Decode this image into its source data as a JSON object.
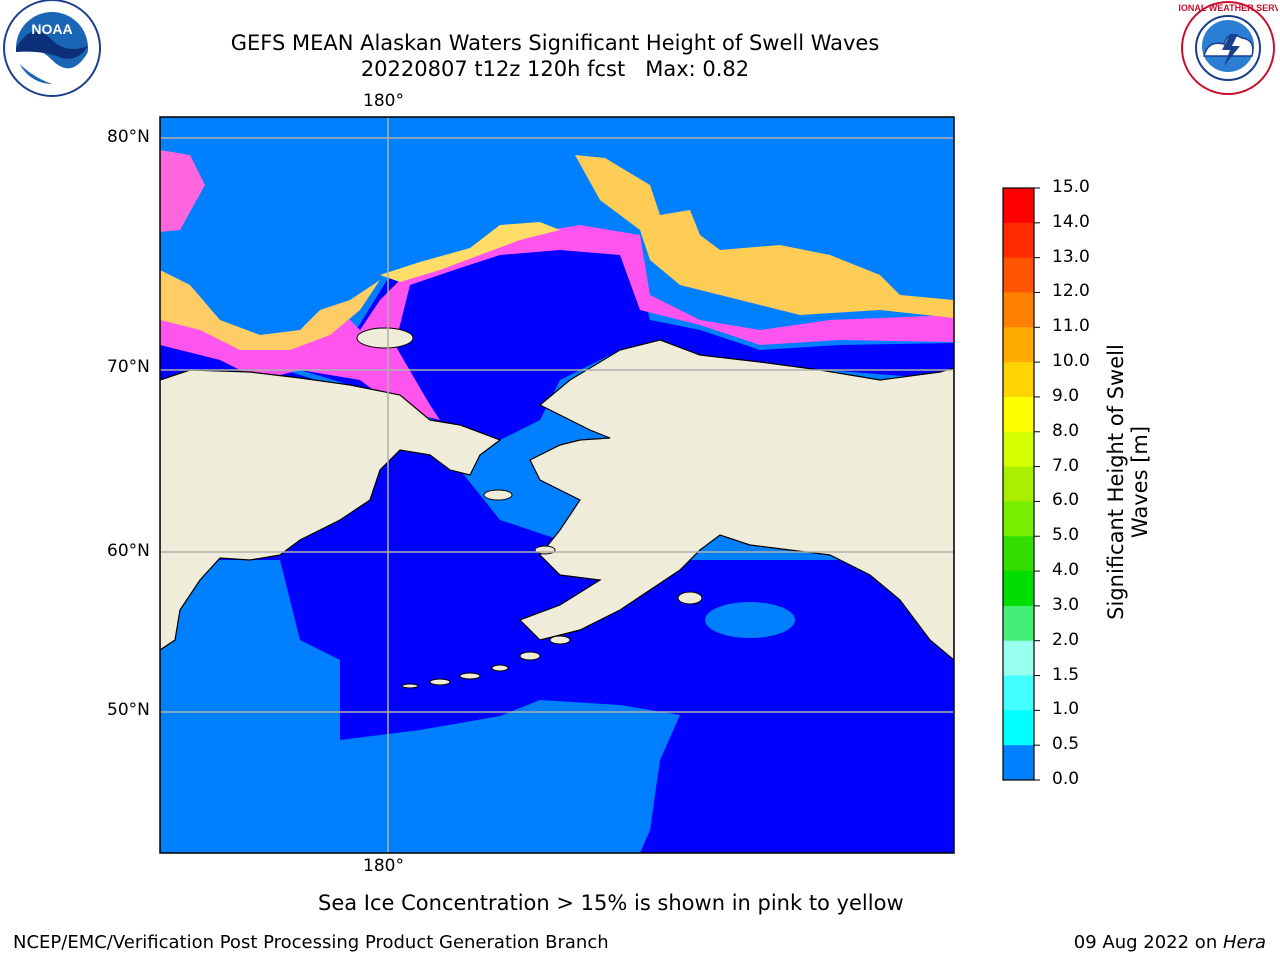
{
  "header": {
    "title_line1": "GEFS MEAN Alaskan Waters Significant Height of Swell Waves",
    "title_line2": "20220807 t12z 120h fcst   Max: 0.82"
  },
  "logos": {
    "left": {
      "icon": "noaa-logo-icon",
      "text": "NOAA"
    },
    "right": {
      "icon": "nws-logo-icon",
      "text": "NATIONAL WEATHER SERVICE"
    }
  },
  "map": {
    "lon_labels": [
      "180°",
      "180°"
    ],
    "lat_labels": [
      "80°N",
      "70°N",
      "60°N",
      "50°N"
    ],
    "colors": {
      "land": "#efedd9",
      "swell_0_0.5": "#0000ff",
      "swell_0.5_1.0": "#0080ff",
      "ice": [
        "#ff44ee",
        "#ff88cc",
        "#ffbb77",
        "#ffd055"
      ]
    }
  },
  "colorbar": {
    "label": "Significant Height of Swell Waves [m]",
    "ticks": [
      "15.0",
      "14.0",
      "13.0",
      "12.0",
      "11.0",
      "10.0",
      "9.0",
      "8.0",
      "7.0",
      "6.0",
      "5.0",
      "4.0",
      "3.0",
      "2.0",
      "1.5",
      "1.0",
      "0.5",
      "0.0"
    ],
    "colors": [
      "#ff0000",
      "#ff2a00",
      "#ff5500",
      "#ff8000",
      "#ffaa00",
      "#ffd400",
      "#ffff00",
      "#d4ff00",
      "#aaee00",
      "#77ee00",
      "#33dd00",
      "#00dd00",
      "#44ee77",
      "#99ffee",
      "#44ffff",
      "#00ffff",
      "#0080ff",
      "#0000ff"
    ]
  },
  "note": "Sea Ice Concentration > 15% is shown in pink to yellow",
  "footer": {
    "left": "NCEP/EMC/Verification Post Processing Product Generation Branch",
    "right_prefix": "09 Aug 2022 on ",
    "right_host": "Hera"
  }
}
